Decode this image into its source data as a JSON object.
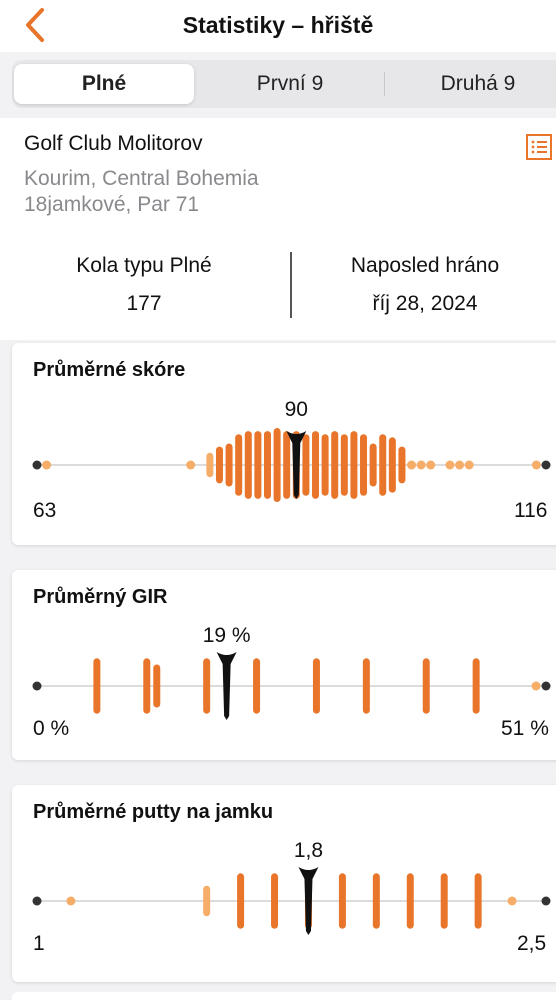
{
  "header": {
    "title": "Statistiky – hřiště",
    "back_icon": "chevron-left-icon",
    "accent": "#e8752a"
  },
  "tabs": [
    {
      "label": "Plné",
      "active": true
    },
    {
      "label": "První 9",
      "active": false
    },
    {
      "label": "Druhá 9",
      "active": false
    }
  ],
  "course": {
    "name": "Golf Club Molitorov",
    "location": "Kourim, Central Bohemia",
    "details": "18jamkové, Par 71",
    "list_icon": "list-icon"
  },
  "summary": {
    "rounds_label": "Kola typu Plné",
    "rounds_value": "177",
    "last_played_label": "Naposled hráno",
    "last_played_value": "říj 28, 2024"
  },
  "cards": [
    {
      "title": "Průměrné skóre",
      "min_label": "63",
      "max_label": "116",
      "avg_label": "90",
      "min": 63,
      "max": 116,
      "avg": 90,
      "dist": [
        {
          "v": 64,
          "n": 1
        },
        {
          "v": 79,
          "n": 1
        },
        {
          "v": 81,
          "n": 2
        },
        {
          "v": 82,
          "n": 4
        },
        {
          "v": 83,
          "n": 5
        },
        {
          "v": 84,
          "n": 8
        },
        {
          "v": 85,
          "n": 9
        },
        {
          "v": 86,
          "n": 9
        },
        {
          "v": 87,
          "n": 9
        },
        {
          "v": 88,
          "n": 10
        },
        {
          "v": 89,
          "n": 9
        },
        {
          "v": 90,
          "n": 9
        },
        {
          "v": 91,
          "n": 8
        },
        {
          "v": 92,
          "n": 9
        },
        {
          "v": 93,
          "n": 8
        },
        {
          "v": 94,
          "n": 9
        },
        {
          "v": 95,
          "n": 8
        },
        {
          "v": 96,
          "n": 9
        },
        {
          "v": 97,
          "n": 8
        },
        {
          "v": 98,
          "n": 5
        },
        {
          "v": 99,
          "n": 8
        },
        {
          "v": 100,
          "n": 7
        },
        {
          "v": 101,
          "n": 4
        },
        {
          "v": 102,
          "n": 1
        },
        {
          "v": 103,
          "n": 1
        },
        {
          "v": 104,
          "n": 1
        },
        {
          "v": 106,
          "n": 1
        },
        {
          "v": 107,
          "n": 1
        },
        {
          "v": 108,
          "n": 1
        },
        {
          "v": 115,
          "n": 1
        }
      ]
    },
    {
      "title": "Průměrný GIR",
      "min_label": "0 %",
      "max_label": "51 %",
      "avg_label": "19 %",
      "min": 0,
      "max": 51,
      "avg": 19,
      "dist": [
        {
          "v": 6,
          "n": 7
        },
        {
          "v": 11,
          "n": 7
        },
        {
          "v": 12,
          "n": 5
        },
        {
          "v": 17,
          "n": 7
        },
        {
          "v": 22,
          "n": 7
        },
        {
          "v": 28,
          "n": 7
        },
        {
          "v": 33,
          "n": 7
        },
        {
          "v": 39,
          "n": 7
        },
        {
          "v": 44,
          "n": 7
        },
        {
          "v": 50,
          "n": 1
        }
      ]
    },
    {
      "title": "Průměrné putty na jamku",
      "min_label": "1",
      "max_label": "2,5",
      "avg_label": "1,8",
      "min": 1,
      "max": 2.5,
      "avg": 1.8,
      "dist": [
        {
          "v": 1.1,
          "n": 1
        },
        {
          "v": 1.5,
          "n": 3
        },
        {
          "v": 1.6,
          "n": 7
        },
        {
          "v": 1.7,
          "n": 7
        },
        {
          "v": 1.8,
          "n": 7
        },
        {
          "v": 1.9,
          "n": 7
        },
        {
          "v": 2.0,
          "n": 7
        },
        {
          "v": 2.1,
          "n": 7
        },
        {
          "v": 2.2,
          "n": 7
        },
        {
          "v": 2.3,
          "n": 7
        },
        {
          "v": 2.4,
          "n": 1
        }
      ]
    }
  ]
}
